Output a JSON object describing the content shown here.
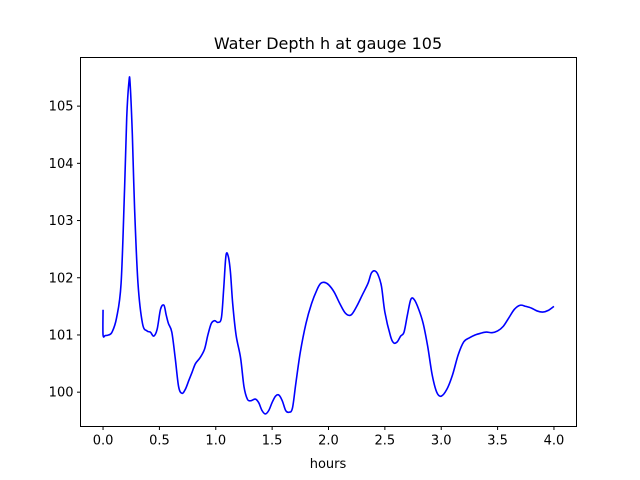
{
  "chart_data": {
    "type": "line",
    "title": "Water Depth h at gauge 105",
    "xlabel": "hours",
    "ylabel": "",
    "xlim": [
      -0.2,
      4.2
    ],
    "ylim": [
      99.4,
      105.85
    ],
    "xticks": [
      0.0,
      0.5,
      1.0,
      1.5,
      2.0,
      2.5,
      3.0,
      3.5,
      4.0
    ],
    "xtick_labels": [
      "0.0",
      "0.5",
      "1.0",
      "1.5",
      "2.0",
      "2.5",
      "3.0",
      "3.5",
      "4.0"
    ],
    "yticks": [
      100,
      101,
      102,
      103,
      104,
      105
    ],
    "ytick_labels": [
      "100",
      "101",
      "102",
      "103",
      "104",
      "105"
    ],
    "grid": false,
    "series": [
      {
        "color": "#0000ff",
        "x": [
          0.0,
          0.0,
          0.02,
          0.05,
          0.08,
          0.12,
          0.16,
          0.19,
          0.21,
          0.23,
          0.24,
          0.26,
          0.28,
          0.31,
          0.35,
          0.39,
          0.42,
          0.45,
          0.48,
          0.51,
          0.54,
          0.56,
          0.58,
          0.61,
          0.64,
          0.67,
          0.7,
          0.73,
          0.76,
          0.79,
          0.82,
          0.86,
          0.9,
          0.93,
          0.96,
          0.99,
          1.02,
          1.05,
          1.07,
          1.09,
          1.11,
          1.13,
          1.15,
          1.18,
          1.22,
          1.25,
          1.28,
          1.31,
          1.35,
          1.38,
          1.41,
          1.44,
          1.47,
          1.5,
          1.53,
          1.56,
          1.59,
          1.62,
          1.65,
          1.68,
          1.71,
          1.75,
          1.8,
          1.85,
          1.9,
          1.93,
          1.96,
          2.0,
          2.05,
          2.1,
          2.15,
          2.2,
          2.25,
          2.3,
          2.35,
          2.38,
          2.41,
          2.44,
          2.47,
          2.5,
          2.55,
          2.58,
          2.61,
          2.64,
          2.67,
          2.7,
          2.73,
          2.76,
          2.8,
          2.84,
          2.88,
          2.92,
          2.96,
          3.0,
          3.05,
          3.1,
          3.15,
          3.2,
          3.25,
          3.3,
          3.35,
          3.4,
          3.45,
          3.5,
          3.55,
          3.6,
          3.65,
          3.7,
          3.75,
          3.8,
          3.85,
          3.9,
          3.95,
          4.0
        ],
        "values": [
          101.44,
          101.0,
          100.99,
          101.0,
          101.05,
          101.3,
          101.9,
          103.5,
          104.8,
          105.43,
          105.4,
          104.5,
          103.2,
          101.9,
          101.2,
          101.07,
          101.05,
          100.98,
          101.1,
          101.45,
          101.52,
          101.35,
          101.2,
          101.05,
          100.6,
          100.1,
          99.98,
          100.05,
          100.2,
          100.35,
          100.5,
          100.6,
          100.75,
          101.0,
          101.2,
          101.25,
          101.22,
          101.3,
          101.8,
          102.38,
          102.38,
          102.1,
          101.55,
          101.0,
          100.6,
          100.1,
          99.88,
          99.85,
          99.88,
          99.82,
          99.68,
          99.62,
          99.68,
          99.82,
          99.93,
          99.95,
          99.85,
          99.68,
          99.65,
          99.72,
          100.15,
          100.7,
          101.2,
          101.55,
          101.8,
          101.9,
          101.92,
          101.88,
          101.75,
          101.55,
          101.38,
          101.35,
          101.5,
          101.7,
          101.9,
          102.08,
          102.12,
          102.05,
          101.85,
          101.4,
          100.98,
          100.86,
          100.88,
          100.98,
          101.05,
          101.35,
          101.62,
          101.62,
          101.45,
          101.2,
          100.8,
          100.3,
          100.0,
          99.93,
          100.05,
          100.3,
          100.65,
          100.88,
          100.95,
          101.0,
          101.03,
          101.05,
          101.04,
          101.07,
          101.15,
          101.3,
          101.45,
          101.52,
          101.5,
          101.47,
          101.42,
          101.4,
          101.43,
          101.5
        ]
      }
    ]
  }
}
